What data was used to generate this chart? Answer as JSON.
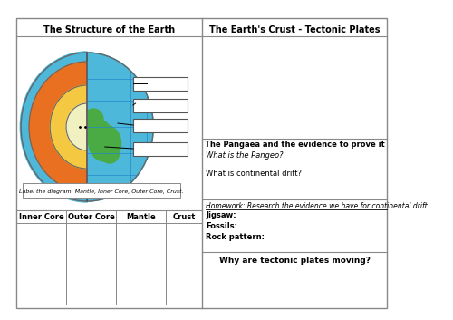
{
  "bg_color": "#ffffff",
  "border_color": "#888888",
  "title_left": "The Structure of the Earth",
  "title_right": "The Earth's Crust - Tectonic Plates",
  "label_instruction": "Label the diagram: Mantle, Inner Core, Outer Core, Crust.",
  "table_headers": [
    "Inner Core",
    "Outer Core",
    "Mantle",
    "Crust"
  ],
  "pangaea_title": "The Pangaea and the evidence to prove it",
  "q1": "What is the Pangeo?",
  "q2": "What is continental drift?",
  "homework": "Homework: Research the evidence we have for continental drift",
  "jigsaw": "Jigsaw:",
  "fossils": "Fossils:",
  "rock_pattern": "Rock pattern:",
  "bottom_title": "Why are tectonic plates moving?",
  "colors": {
    "crust_outer": "#4db8d9",
    "mantle": "#e87020",
    "outer_core": "#f5c842",
    "inner_core": "#f0f0c0",
    "green_land": "#4aaa44",
    "grid_lines": "#2288cc",
    "core_border": "#cc6600"
  }
}
